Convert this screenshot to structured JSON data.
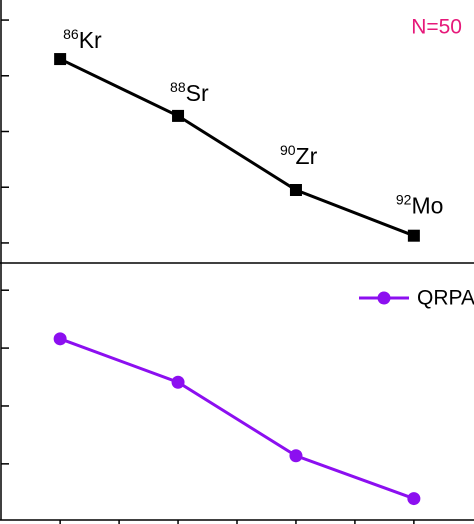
{
  "chart_data": [
    {
      "type": "line",
      "x": [
        0,
        1,
        2,
        3
      ],
      "xlim": [
        -0.51,
        3.51
      ],
      "ylim": [
        -0.36,
        4.36
      ],
      "yticks": [
        0,
        1,
        2,
        3,
        4
      ],
      "series": [
        {
          "color": "#000000",
          "marker": "square",
          "values": [
            3.3,
            2.28,
            0.95,
            0.13
          ]
        }
      ],
      "annotations": [
        {
          "mass": "86",
          "symbol": "Kr"
        },
        {
          "mass": "88",
          "symbol": "Sr"
        },
        {
          "mass": "90",
          "symbol": "Zr"
        },
        {
          "mass": "92",
          "symbol": "Mo"
        }
      ],
      "label": {
        "text": "N=50",
        "color": "#e6197a"
      }
    },
    {
      "type": "line",
      "x": [
        0,
        1,
        2,
        3
      ],
      "xlim": [
        -0.51,
        3.51
      ],
      "xticks": [
        0,
        0.5,
        1,
        1.5,
        2,
        2.5,
        3
      ],
      "ylim": [
        -0.97,
        3.47
      ],
      "yticks": [
        0,
        1,
        2,
        3
      ],
      "series": [
        {
          "name": "QRPA",
          "color": "#8c0ff0",
          "marker": "circle",
          "values": [
            2.16,
            1.41,
            0.14,
            -0.6
          ]
        }
      ],
      "legend": "upper right"
    }
  ]
}
